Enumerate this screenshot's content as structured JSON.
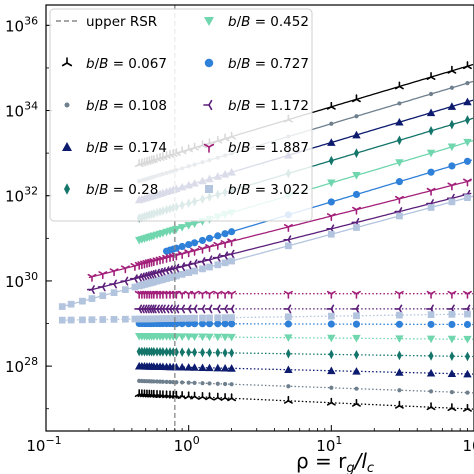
{
  "chart_data": {
    "type": "line",
    "title": "",
    "xlabel": "ρ = r_g/l_c",
    "ylabel": "",
    "x_scale": "log",
    "y_scale": "log",
    "xlim": [
      0.1,
      100
    ],
    "ylim": [
      3e+26,
      3e+36
    ],
    "x_ticks": [
      0.1,
      1,
      10,
      100
    ],
    "x_tick_labels": [
      {
        "base": "10",
        "exp": "−1"
      },
      {
        "base": "10",
        "exp": "0"
      },
      {
        "base": "10",
        "exp": "1"
      },
      {
        "base": "10",
        "exp": ""
      }
    ],
    "y_ticks": [
      1e+28,
      1e+30,
      1e+32,
      1e+34,
      1e+36
    ],
    "y_tick_labels": [
      {
        "base": "10",
        "exp": "28"
      },
      {
        "base": "10",
        "exp": "30"
      },
      {
        "base": "10",
        "exp": "32"
      },
      {
        "base": "10",
        "exp": "34"
      },
      {
        "base": "10",
        "exp": "36"
      }
    ],
    "grid": false,
    "legend_position": "top-left",
    "reference_lines": [
      {
        "label": "upper RSR",
        "axis": "x",
        "value": 0.8,
        "style": "dashed",
        "color": "#888888"
      }
    ],
    "series": [
      {
        "name": "b/B = 0.067",
        "value": "0.067",
        "color": "#000000",
        "marker": "tri",
        "upper_start": [
          0.45,
          5.5e+32
        ],
        "upper_slope": 1.0,
        "lower_start": [
          0.45,
          2.2e+27
        ],
        "lower_slope": -0.15
      },
      {
        "name": "b/B = 0.108",
        "value": "0.108",
        "color": "#6e7f8e",
        "marker": "dot",
        "upper_start": [
          0.45,
          2.2e+32
        ],
        "upper_slope": 1.0,
        "lower_start": [
          0.45,
          4.5e+27
        ],
        "lower_slope": -0.12
      },
      {
        "name": "b/B = 0.174",
        "value": "0.174",
        "color": "#0d1b6f",
        "marker": "triangle-up",
        "upper_start": [
          0.45,
          8e+31
        ],
        "upper_slope": 1.0,
        "lower_start": [
          0.45,
          1e+28
        ],
        "lower_slope": -0.08
      },
      {
        "name": "b/B = 0.28",
        "value": "0.28",
        "color": "#14756b",
        "marker": "thin-diamond",
        "upper_start": [
          0.45,
          3e+31
        ],
        "upper_slope": 1.0,
        "lower_start": [
          0.45,
          2.2e+28
        ],
        "lower_slope": -0.05
      },
      {
        "name": "b/B = 0.452",
        "value": "0.452",
        "color": "#6fd6ae",
        "marker": "triangle-down",
        "upper_start": [
          0.45,
          9e+30
        ],
        "upper_slope": 1.0,
        "lower_start": [
          0.45,
          5e+28
        ],
        "lower_slope": -0.03
      },
      {
        "name": "b/B = 0.727",
        "value": "0.727",
        "color": "#2f80d8",
        "marker": "circle",
        "upper_start": [
          0.7,
          5e+30
        ],
        "upper_slope": 1.0,
        "lower_start": [
          0.45,
          1e+29
        ],
        "lower_slope": -0.01
      },
      {
        "name": "b/B = 1.172",
        "value": "1.172",
        "color": "#5b1f7a",
        "marker": "tri-left",
        "upper_start": [
          0.2,
          6e+29
        ],
        "upper_slope": 0.85,
        "lower_start": [
          0.45,
          2.2e+29
        ],
        "lower_slope": 0.0
      },
      {
        "name": "b/B = 1.887",
        "value": "1.887",
        "color": "#a21f7a",
        "marker": "tri-down",
        "upper_start": [
          0.2,
          1.2e+30
        ],
        "upper_slope": 0.85,
        "lower_start": [
          0.45,
          5e+29
        ],
        "lower_slope": 0.0
      },
      {
        "name": "b/B = 3.022",
        "value": "3.022",
        "color": "#b3c4de",
        "marker": "square",
        "upper_start": [
          0.13,
          2.5e+29
        ],
        "upper_slope": 0.9,
        "lower_start": [
          0.13,
          1.2e+29
        ],
        "lower_slope": 0.05
      }
    ]
  }
}
